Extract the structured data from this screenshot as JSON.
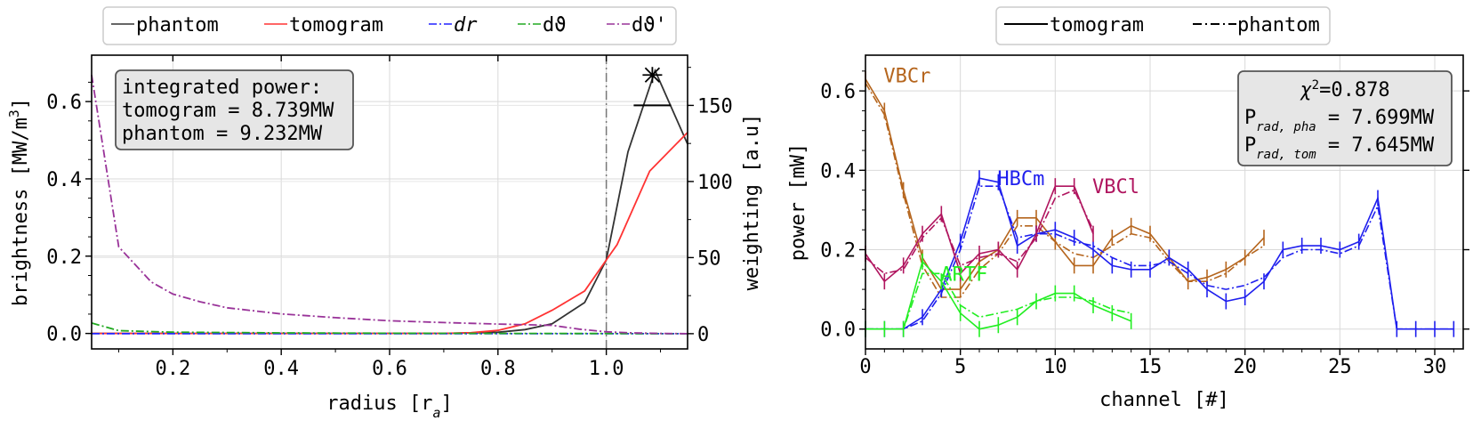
{
  "colors": {
    "phantom": "#333333",
    "tomogram": "#ff3333",
    "dr": "#2222ff",
    "dtheta": "#22aa22",
    "dthetap": "#993399",
    "vbcr": "#b5651d",
    "hbcm": "#1f1fee",
    "vbcl": "#b0155f",
    "artf": "#22ee22",
    "box": "#e6e6e6"
  },
  "chart_data": [
    {
      "type": "line",
      "xlabel": "radius [r_a]",
      "ylabel": "brightness [MW/m³]",
      "y2label": "weighting [a.u]",
      "xlim": [
        0.05,
        1.15
      ],
      "ylim": [
        -0.04,
        0.72
      ],
      "y2lim": [
        -10,
        183
      ],
      "xticks": [
        "0.2",
        "0.4",
        "0.6",
        "0.8",
        "1.0"
      ],
      "yticks": [
        "0.0",
        "0.2",
        "0.4",
        "0.6"
      ],
      "y2ticks": [
        "0",
        "50",
        "100",
        "150"
      ],
      "grid": true,
      "legend": {
        "placement": "top",
        "entries": [
          {
            "label": "phantom",
            "style": "solid",
            "color_key": "phantom"
          },
          {
            "label": "tomogram",
            "style": "solid",
            "color_key": "tomogram"
          },
          {
            "label": "dr",
            "italic": true,
            "style": "dashdot",
            "color_key": "dr"
          },
          {
            "label": "dϑ",
            "style": "dashdot",
            "color_key": "dtheta"
          },
          {
            "label": "dϑ'",
            "style": "dashdot",
            "color_key": "dthetap"
          }
        ]
      },
      "annotation_lines": [
        "integrated power:",
        "tomogram = 8.739MW",
        "phantom = 9.232MW"
      ],
      "vline_x": 1.0,
      "markers": [
        {
          "shape": "star",
          "x": 1.085,
          "y2": 170
        },
        {
          "shape": "hline",
          "x": 1.085,
          "y2": 150
        }
      ],
      "series": [
        {
          "name": "phantom",
          "axis": "y",
          "color_key": "phantom",
          "style": "solid",
          "x": [
            0.05,
            0.1,
            0.2,
            0.3,
            0.4,
            0.5,
            0.6,
            0.7,
            0.8,
            0.85,
            0.9,
            0.96,
            1.0,
            1.04,
            1.09,
            1.15
          ],
          "y": [
            0.0,
            0.0,
            0.0,
            0.0,
            0.0,
            0.0,
            0.0,
            0.0,
            0.003,
            0.01,
            0.025,
            0.08,
            0.19,
            0.47,
            0.68,
            0.49
          ]
        },
        {
          "name": "tomogram",
          "axis": "y",
          "color_key": "tomogram",
          "style": "solid",
          "x": [
            0.05,
            0.1,
            0.2,
            0.3,
            0.4,
            0.5,
            0.6,
            0.7,
            0.75,
            0.8,
            0.85,
            0.9,
            0.96,
            1.0,
            1.02,
            1.08,
            1.15
          ],
          "y": [
            0.0,
            0.0,
            0.0,
            0.0,
            0.0,
            0.0,
            0.0,
            0.0,
            0.002,
            0.008,
            0.025,
            0.06,
            0.11,
            0.19,
            0.23,
            0.42,
            0.52
          ]
        },
        {
          "name": "dr",
          "axis": "y2",
          "color_key": "dr",
          "style": "dashdot",
          "x": [
            0.05,
            1.15
          ],
          "y": [
            0,
            0
          ]
        },
        {
          "name": "dϑ",
          "axis": "y2",
          "color_key": "dtheta",
          "style": "dashdot",
          "x": [
            0.05,
            0.1,
            0.2,
            0.4,
            0.6,
            0.8,
            1.0,
            1.15
          ],
          "y": [
            7,
            2,
            1,
            0.5,
            0.3,
            0.2,
            0.1,
            0
          ]
        },
        {
          "name": "dϑ'",
          "axis": "y2",
          "color_key": "dthetap",
          "style": "dashdot",
          "x": [
            0.05,
            0.1,
            0.16,
            0.2,
            0.25,
            0.3,
            0.4,
            0.5,
            0.6,
            0.7,
            0.8,
            0.9,
            0.95,
            1.0,
            1.05,
            1.1,
            1.15
          ],
          "y": [
            170,
            57,
            34,
            26,
            21,
            17,
            13,
            10.5,
            8.5,
            7.3,
            6.3,
            5.5,
            3,
            1.2,
            0.5,
            0.2,
            0
          ]
        }
      ]
    },
    {
      "type": "line",
      "xlabel": "channel [#]",
      "ylabel": "power [mW]",
      "xlim": [
        0,
        31.5
      ],
      "ylim": [
        -0.05,
        0.69
      ],
      "xticks": [
        "0",
        "5",
        "10",
        "15",
        "20",
        "25",
        "30"
      ],
      "yticks": [
        "0.0",
        "0.2",
        "0.4",
        "0.6"
      ],
      "grid": true,
      "legend": {
        "placement": "top",
        "entries": [
          {
            "label": "tomogram",
            "style": "solid",
            "color_key": "phantom"
          },
          {
            "label": "phantom",
            "style": "dashdot",
            "color_key": "phantom"
          }
        ]
      },
      "annotation_lines": [
        "χ²=0.878",
        "Prad,pha = 7.699MW",
        "Prad,tom = 7.645MW"
      ],
      "camera_labels": [
        {
          "label": "VBCr",
          "color_key": "vbcr",
          "x": 1.0,
          "y": 0.64
        },
        {
          "label": "HBCm",
          "color_key": "hbcm",
          "x": 7.0,
          "y": 0.38
        },
        {
          "label": "VBCl",
          "color_key": "vbcl",
          "x": 12.0,
          "y": 0.36
        },
        {
          "label": "ARTF",
          "color_key": "artf",
          "x": 4.0,
          "y": 0.14
        }
      ],
      "series": [
        {
          "camera": "VBCr",
          "color_key": "vbcr",
          "x": [
            0,
            1,
            2,
            3,
            4,
            5,
            6,
            7,
            8,
            9,
            10,
            11,
            12,
            13,
            14,
            15,
            16,
            17,
            18,
            19,
            20,
            21
          ],
          "tomogram": [
            0.63,
            0.55,
            0.35,
            0.18,
            0.1,
            0.1,
            0.17,
            0.2,
            0.28,
            0.28,
            0.22,
            0.16,
            0.16,
            0.23,
            0.26,
            0.24,
            0.18,
            0.12,
            0.13,
            0.15,
            0.18,
            0.23
          ],
          "phantom": [
            0.62,
            0.54,
            0.34,
            0.16,
            0.08,
            0.08,
            0.15,
            0.19,
            0.26,
            0.26,
            0.22,
            0.19,
            0.18,
            0.21,
            0.24,
            0.23,
            0.17,
            0.12,
            0.12,
            0.14,
            0.18,
            0.21
          ]
        },
        {
          "camera": "HBCm",
          "color_key": "hbcm",
          "x": [
            0,
            1,
            2,
            3,
            4,
            5,
            6,
            7,
            8,
            9,
            10,
            11,
            12,
            13,
            14,
            15,
            16,
            17,
            18,
            19,
            20,
            21,
            22,
            23,
            24,
            25,
            26,
            27,
            28,
            29,
            30,
            31
          ],
          "tomogram": [
            0.0,
            0.0,
            0.0,
            0.03,
            0.1,
            0.22,
            0.38,
            0.37,
            0.21,
            0.24,
            0.25,
            0.23,
            0.2,
            0.16,
            0.15,
            0.15,
            0.18,
            0.15,
            0.1,
            0.07,
            0.08,
            0.12,
            0.2,
            0.21,
            0.21,
            0.2,
            0.22,
            0.33,
            0.0,
            0.0,
            0.0,
            0.0
          ],
          "phantom": [
            0.0,
            0.0,
            0.0,
            0.02,
            0.09,
            0.2,
            0.36,
            0.36,
            0.23,
            0.24,
            0.24,
            0.22,
            0.21,
            0.18,
            0.16,
            0.16,
            0.17,
            0.14,
            0.11,
            0.1,
            0.11,
            0.13,
            0.18,
            0.2,
            0.2,
            0.19,
            0.21,
            0.31,
            0.0,
            0.0,
            0.0,
            0.0
          ]
        },
        {
          "camera": "VBCl",
          "color_key": "vbcl",
          "x": [
            0,
            1,
            2,
            3,
            4,
            5,
            6,
            7,
            8,
            9,
            10,
            11,
            12
          ],
          "tomogram": [
            0.19,
            0.12,
            0.16,
            0.24,
            0.29,
            0.14,
            0.19,
            0.2,
            0.15,
            0.24,
            0.36,
            0.36,
            0.24
          ],
          "phantom": [
            0.18,
            0.14,
            0.15,
            0.23,
            0.28,
            0.16,
            0.18,
            0.19,
            0.17,
            0.23,
            0.33,
            0.35,
            0.25
          ]
        },
        {
          "camera": "ARTF",
          "color_key": "artf",
          "x": [
            0,
            1,
            2,
            3,
            4,
            5,
            6,
            7,
            8,
            9,
            10,
            11,
            12,
            13,
            14
          ],
          "tomogram": [
            0.0,
            0.0,
            0.0,
            0.17,
            0.12,
            0.04,
            0.0,
            0.01,
            0.03,
            0.07,
            0.09,
            0.09,
            0.06,
            0.04,
            0.02
          ],
          "phantom": [
            0.0,
            0.0,
            0.0,
            0.14,
            0.14,
            0.06,
            0.03,
            0.04,
            0.05,
            0.07,
            0.08,
            0.08,
            0.07,
            0.05,
            0.04
          ]
        }
      ]
    }
  ]
}
